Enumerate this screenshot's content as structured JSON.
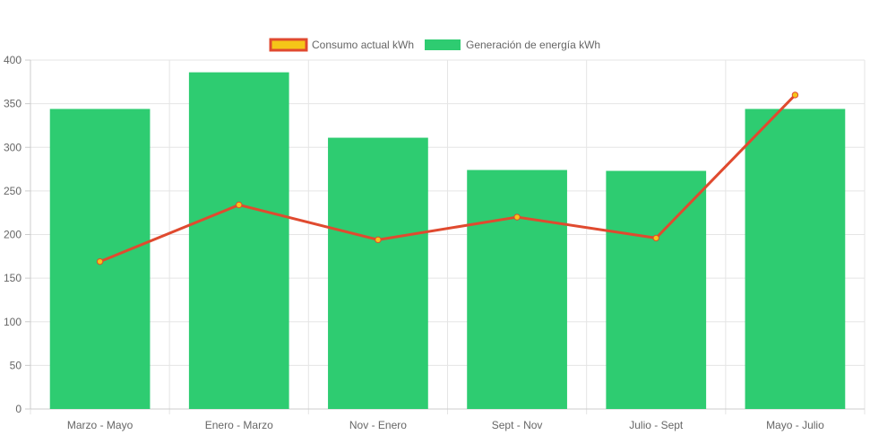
{
  "chart_data": {
    "type": "bar",
    "categories": [
      "Marzo - Mayo",
      "Enero - Marzo",
      "Nov - Enero",
      "Sept - Nov",
      "Julio - Sept",
      "Mayo - Julio"
    ],
    "series": [
      {
        "name": "Consumo actual kWh",
        "type": "line",
        "values": [
          169,
          234,
          194,
          220,
          196,
          360
        ],
        "color": "#e04a2f",
        "point_color": "#f5c518"
      },
      {
        "name": "Generación de energía kWh",
        "type": "bar",
        "values": [
          344,
          386,
          311,
          274,
          273,
          344
        ],
        "color": "#2ecc71"
      }
    ],
    "ylim": [
      0,
      400
    ],
    "yticks": [
      0,
      50,
      100,
      150,
      200,
      250,
      300,
      350,
      400
    ],
    "grid": true,
    "legend": "top-center"
  }
}
